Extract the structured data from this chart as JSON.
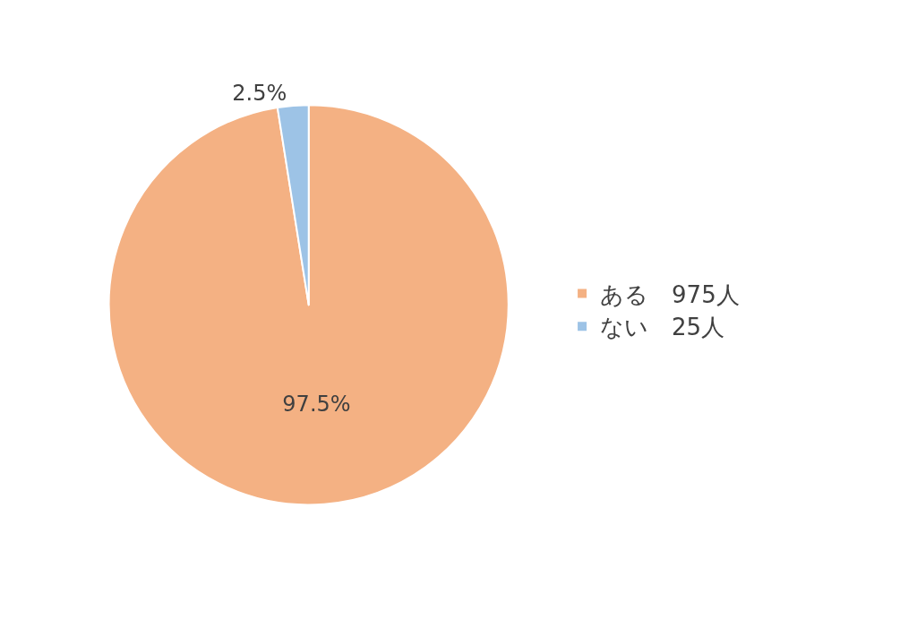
{
  "chart_data": {
    "type": "pie",
    "categories": [
      "ある　975人",
      "ない　25人"
    ],
    "values": [
      97.5,
      2.5
    ],
    "colors": [
      "#f4b183",
      "#9dc3e6"
    ],
    "value_labels": [
      "97.5%",
      "2.5%"
    ],
    "legend": "right"
  }
}
